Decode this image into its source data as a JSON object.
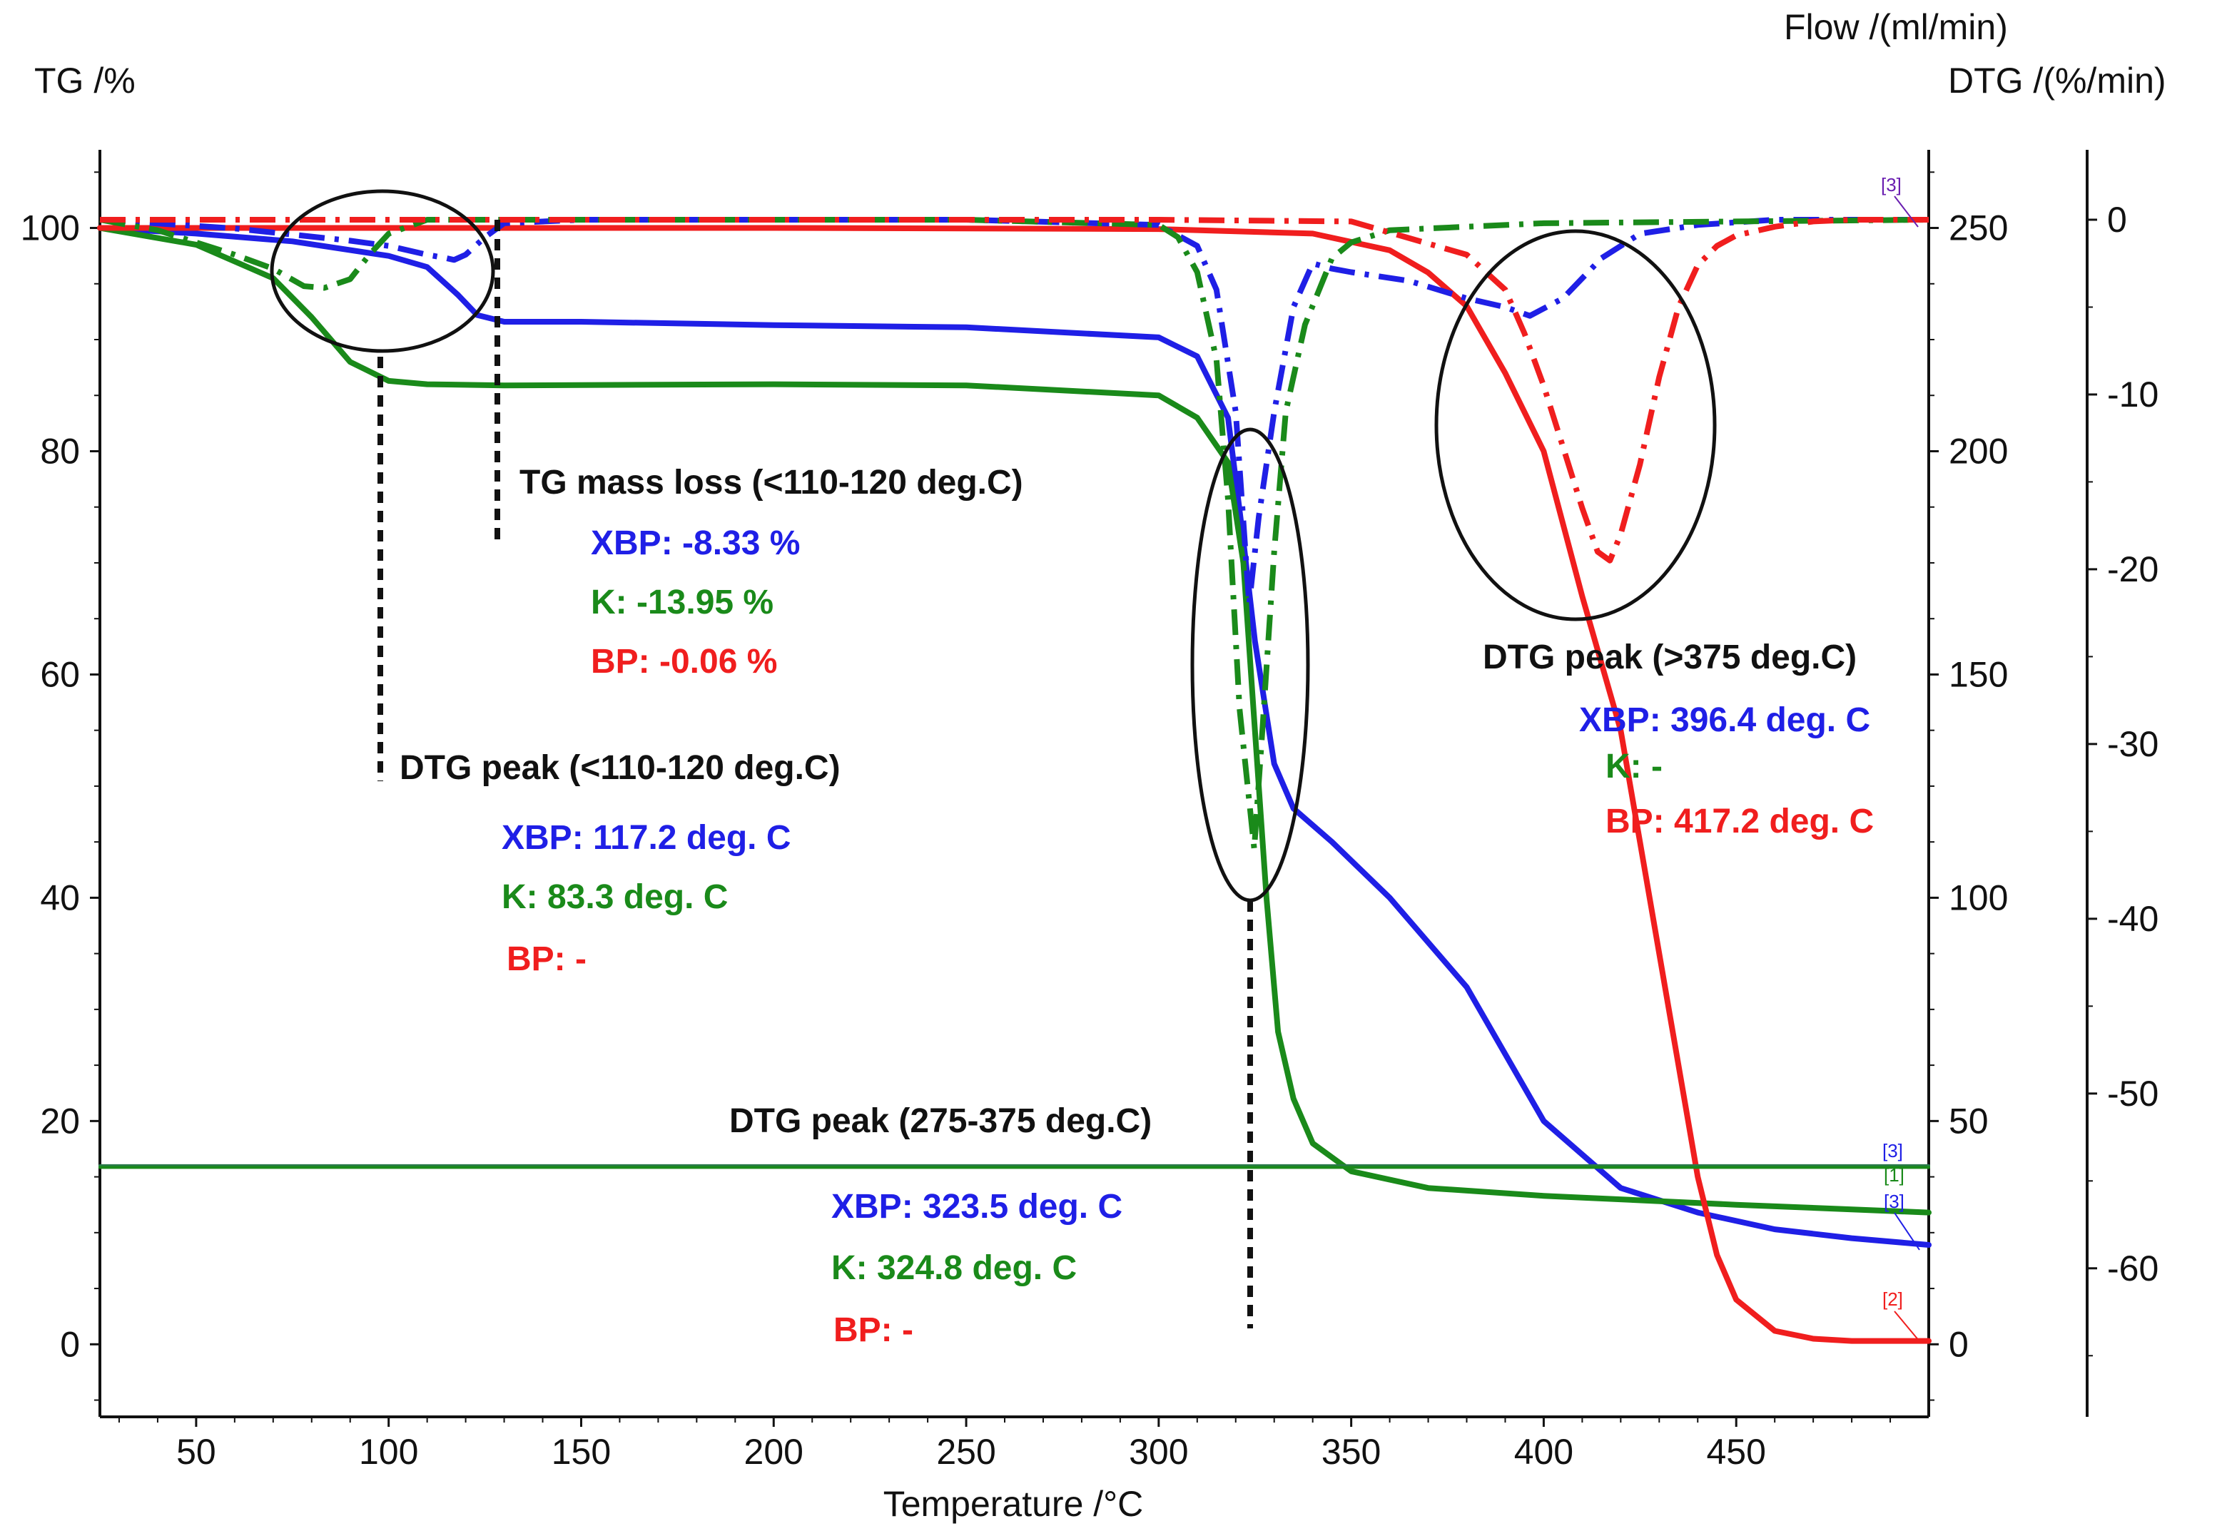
{
  "chart_data": {
    "type": "line",
    "title": "",
    "xlabel": "Temperature /°C",
    "ylabel": "TG /%",
    "y2label_top": "Flow /(ml/min)",
    "y2label_bottom": "DTG /(%/min)",
    "xlim": [
      25,
      500
    ],
    "ylim": [
      -6.5,
      107
    ],
    "flow_lim": [
      -16.25,
      267.5
    ],
    "dtg_lim": [
      -68.5,
      4
    ],
    "x_ticks": [
      50,
      100,
      150,
      200,
      250,
      300,
      350,
      400,
      450
    ],
    "y_ticks": [
      0,
      20,
      40,
      60,
      80,
      100
    ],
    "flow_ticks": [
      0,
      50,
      100,
      150,
      200,
      250
    ],
    "dtg_ticks": [
      0,
      -10,
      -20,
      -30,
      -40,
      -50,
      -60
    ],
    "colors": {
      "XBP": "#1f1fe6",
      "K": "#1a8a1a",
      "BP": "#f01e1e",
      "annotation": "#111111"
    },
    "series": [
      {
        "name": "XBP TG",
        "axis": "TG",
        "style": "solid",
        "color": "#1f1fe6",
        "x": [
          25,
          50,
          75,
          100,
          110,
          118,
          123,
          130,
          150,
          200,
          250,
          300,
          310,
          318,
          322,
          325,
          330,
          335,
          345,
          360,
          380,
          400,
          420,
          440,
          460,
          480,
          500
        ],
        "y": [
          100,
          99.5,
          98.8,
          97.5,
          96.5,
          94,
          92.2,
          91.6,
          91.6,
          91.3,
          91.1,
          90.2,
          88.5,
          83,
          72,
          63,
          52,
          48,
          45,
          40,
          32,
          20,
          14,
          11.8,
          10.3,
          9.5,
          8.9
        ]
      },
      {
        "name": "K TG",
        "axis": "TG",
        "style": "solid",
        "color": "#1a8a1a",
        "x": [
          25,
          50,
          70,
          80,
          90,
          100,
          110,
          130,
          200,
          250,
          300,
          310,
          318,
          322,
          325,
          328,
          331,
          335,
          340,
          350,
          370,
          400,
          450,
          500
        ],
        "y": [
          100,
          98.5,
          95.5,
          92,
          88,
          86.3,
          86,
          85.9,
          86,
          85.9,
          85,
          83,
          79,
          70,
          55,
          40,
          28,
          22,
          18,
          15.5,
          14,
          13.3,
          12.5,
          11.8
        ]
      },
      {
        "name": "BP TG",
        "axis": "TG",
        "style": "solid",
        "color": "#f01e1e",
        "x": [
          25,
          100,
          200,
          300,
          340,
          360,
          370,
          380,
          390,
          400,
          410,
          420,
          425,
          430,
          435,
          440,
          445,
          450,
          460,
          470,
          480,
          500
        ],
        "y": [
          100,
          100,
          100,
          99.9,
          99.5,
          98,
          96,
          93,
          87,
          80,
          67,
          55,
          45,
          35,
          25,
          15,
          8,
          4,
          1.2,
          0.5,
          0.3,
          0.3
        ]
      },
      {
        "name": "XBP DTG",
        "axis": "DTG",
        "style": "dashdot",
        "color": "#1f1fe6",
        "x": [
          25,
          60,
          90,
          100,
          110,
          115,
          117,
          120,
          125,
          130,
          150,
          200,
          250,
          300,
          310,
          315,
          320,
          323.5,
          326,
          330,
          335,
          340,
          345,
          350,
          365,
          380,
          390,
          396.4,
          405,
          415,
          425,
          440,
          460,
          480,
          500
        ],
        "y": [
          0,
          -0.5,
          -1.2,
          -1.5,
          -2,
          -2.2,
          -2.3,
          -2,
          -1,
          -0.2,
          0,
          0,
          0,
          -0.3,
          -1.5,
          -4,
          -11,
          -22,
          -17,
          -11,
          -5,
          -2.5,
          -2.8,
          -3,
          -3.5,
          -4.5,
          -5,
          -5.5,
          -4.5,
          -2.2,
          -0.8,
          -0.3,
          0,
          0,
          0
        ]
      },
      {
        "name": "K DTG",
        "axis": "DTG",
        "style": "dashdot",
        "color": "#1a8a1a",
        "x": [
          25,
          40,
          60,
          70,
          78,
          83.3,
          90,
          95,
          100,
          110,
          130,
          200,
          250,
          300,
          305,
          310,
          315,
          318,
          321,
          324.8,
          327,
          330,
          333,
          338,
          345,
          350,
          360,
          400,
          450,
          500
        ],
        "y": [
          0,
          -0.6,
          -2,
          -2.8,
          -3.8,
          -3.9,
          -3.4,
          -2,
          -0.8,
          0,
          0,
          0,
          0,
          -0.3,
          -1,
          -3,
          -8,
          -16,
          -28,
          -36,
          -29,
          -19,
          -11,
          -6,
          -2.2,
          -1.3,
          -0.6,
          -0.2,
          -0.1,
          0
        ]
      },
      {
        "name": "BP DTG",
        "axis": "DTG",
        "style": "dashdot",
        "color": "#f01e1e",
        "x": [
          25,
          300,
          350,
          380,
          390,
          395,
          400,
          405,
          410,
          414,
          417.2,
          420,
          425,
          430,
          435,
          440,
          445,
          450,
          460,
          470,
          480,
          500
        ],
        "y": [
          0,
          0,
          -0.1,
          -2,
          -4,
          -6.5,
          -9.5,
          -13,
          -16.5,
          -19,
          -19.5,
          -18,
          -14,
          -9,
          -5,
          -2.6,
          -1.5,
          -0.9,
          -0.4,
          -0.1,
          0,
          0
        ]
      },
      {
        "name": "XBP Flow",
        "axis": "Flow",
        "style": "solid",
        "color": "#2a7a4a",
        "x": [
          25,
          500
        ],
        "y": [
          40,
          40
        ]
      },
      {
        "name": "K Flow",
        "axis": "Flow",
        "style": "solid",
        "color": "#1a8a1a",
        "x": [
          25,
          500
        ],
        "y": [
          39.6,
          39.6
        ]
      }
    ],
    "annotations": {
      "group1": {
        "heading": "TG mass loss (<110-120 deg.C)",
        "xbp": "XBP: -8.33 %",
        "k": "K: -13.95 %",
        "bp": "BP: -0.06 %"
      },
      "group2": {
        "heading": "DTG peak (<110-120 deg.C)",
        "xbp": "XBP: 117.2 deg. C",
        "k": "K: 83.3 deg. C",
        "bp": "BP: -"
      },
      "group3": {
        "heading": "DTG peak (275-375 deg.C)",
        "xbp": "XBP: 323.5 deg. C",
        "k": "K: 324.8 deg. C",
        "bp": "BP: -"
      },
      "group4": {
        "heading": "DTG peak (>375 deg.C)",
        "xbp": "XBP: 396.4 deg. C",
        "k": "K: -",
        "bp": "BP: 417.2 deg. C"
      }
    },
    "curve_tags": {
      "top": "[3]",
      "flow_a": "[3]",
      "flow_b": "[1]",
      "xbp_end": "[3]",
      "bp_end": "[2]"
    }
  }
}
